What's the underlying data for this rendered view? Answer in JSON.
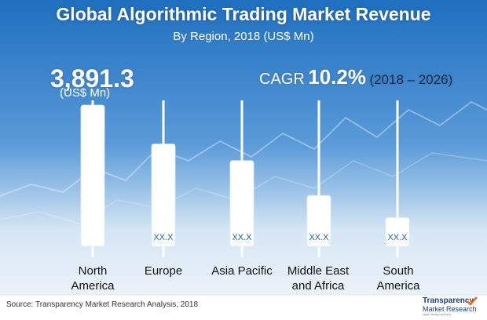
{
  "title": "Global Algorithmic Trading Market Revenue",
  "subtitle": "By Region, 2018 (US$ Mn)",
  "highlight": {
    "value": "3,891.3",
    "unit": "(US$ Mn)"
  },
  "cagr": {
    "label": "CAGR",
    "value": "10.2%",
    "period": "(2018 – 2026)"
  },
  "source": "Source: Transparency Market Research Analysis, 2018",
  "logo": {
    "line1": "Transparency",
    "line2": "Market Research",
    "line3": "Insight. Strategy. Execution."
  },
  "colors": {
    "sky": "#1f6fc0",
    "bar": "#ffffff",
    "value_text": "#1f5fa8",
    "label_text": "#111111"
  },
  "chart_data": {
    "type": "bar",
    "categories": [
      {
        "line1": "North",
        "line2": "America"
      },
      {
        "line1": "Europe",
        "line2": ""
      },
      {
        "line1": "Asia Pacific",
        "line2": ""
      },
      {
        "line1": "Middle East",
        "line2": "and Africa"
      },
      {
        "line1": "South",
        "line2": "America"
      }
    ],
    "values": [
      3891.3,
      2820,
      2360,
      1400,
      790
    ],
    "data_labels": [
      "3,891.3",
      "XX.X",
      "XX.X",
      "XX.X",
      "XX.X"
    ],
    "title": "Global Algorithmic Trading Market Revenue",
    "subtitle": "By Region, 2018 (US$ Mn)",
    "xlabel": "",
    "ylabel": "",
    "ylim": [
      0,
      4000
    ],
    "grid": false,
    "legend": "none"
  }
}
